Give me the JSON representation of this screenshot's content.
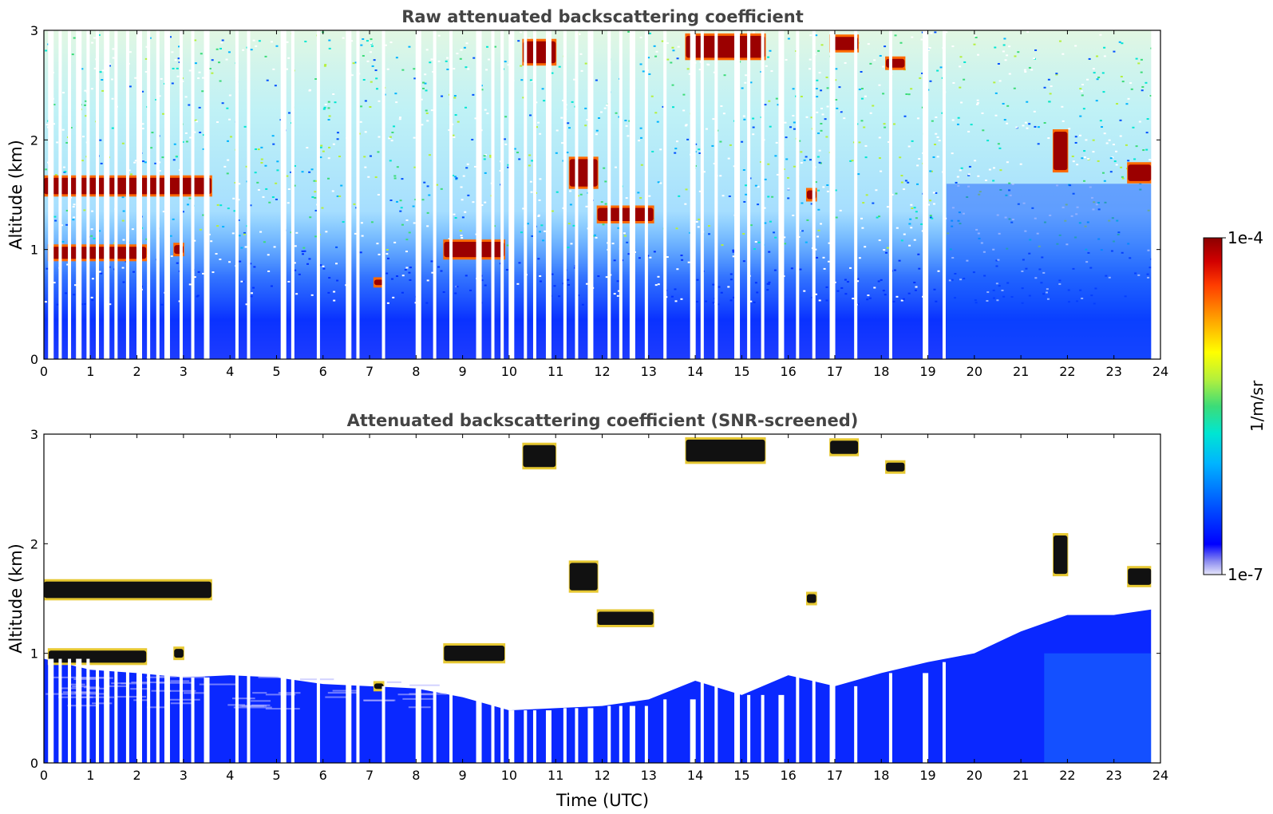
{
  "chart_data": [
    {
      "type": "heatmap",
      "title": "Raw attenuated backscattering coefficient",
      "xlabel": "",
      "ylabel": "Altitude (km)",
      "xlim": [
        0,
        24
      ],
      "ylim": [
        0,
        3
      ],
      "xticks": [
        0,
        1,
        2,
        3,
        4,
        5,
        6,
        7,
        8,
        9,
        10,
        11,
        12,
        13,
        14,
        15,
        16,
        17,
        18,
        19,
        20,
        21,
        22,
        23,
        24
      ],
      "yticks": [
        0,
        1,
        2,
        3
      ],
      "grid": false,
      "data_gaps_utc": [
        0.15,
        0.35,
        0.55,
        0.75,
        0.95,
        1.15,
        1.35,
        1.55,
        1.8,
        2.05,
        2.25,
        2.45,
        2.65,
        2.95,
        3.2,
        3.5,
        4.15,
        4.4,
        5.15,
        5.35,
        5.9,
        6.55,
        6.75,
        7.3,
        8.05,
        8.4,
        8.75,
        9.35,
        9.65,
        9.85,
        10.05,
        10.35,
        10.55,
        10.85,
        11.2,
        11.45,
        11.75,
        12.15,
        12.4,
        12.65,
        12.95,
        13.35,
        13.95,
        14.15,
        14.45,
        14.9,
        15.15,
        15.45,
        15.85,
        16.2,
        16.55,
        16.95,
        17.45,
        18.2,
        18.95,
        19.35
      ],
      "cloud_layers": [
        {
          "t0": 0.0,
          "t1": 3.6,
          "alt": 1.58,
          "thick": 0.15
        },
        {
          "t0": 0.1,
          "t1": 2.2,
          "alt": 0.97,
          "thick": 0.11
        },
        {
          "t0": 2.8,
          "t1": 3.0,
          "alt": 1.0,
          "thick": 0.08
        },
        {
          "t0": 8.6,
          "t1": 9.9,
          "alt": 1.0,
          "thick": 0.14
        },
        {
          "t0": 10.3,
          "t1": 11.0,
          "alt": 2.8,
          "thick": 0.2
        },
        {
          "t0": 11.3,
          "t1": 11.9,
          "alt": 1.7,
          "thick": 0.25
        },
        {
          "t0": 11.9,
          "t1": 13.1,
          "alt": 1.32,
          "thick": 0.12
        },
        {
          "t0": 13.8,
          "t1": 15.5,
          "alt": 2.85,
          "thick": 0.2
        },
        {
          "t0": 16.9,
          "t1": 17.5,
          "alt": 2.88,
          "thick": 0.12
        },
        {
          "t0": 18.1,
          "t1": 18.5,
          "alt": 2.7,
          "thick": 0.08
        },
        {
          "t0": 21.7,
          "t1": 22.0,
          "alt": 1.9,
          "thick": 0.35
        },
        {
          "t0": 23.3,
          "t1": 23.8,
          "alt": 1.7,
          "thick": 0.15
        },
        {
          "t0": 7.1,
          "t1": 7.3,
          "alt": 0.7,
          "thick": 0.05
        },
        {
          "t0": 16.4,
          "t1": 16.6,
          "alt": 1.5,
          "thick": 0.08
        }
      ]
    },
    {
      "type": "heatmap",
      "title": "Attenuated backscattering coefficient (SNR-screened)",
      "xlabel": "Time (UTC)",
      "ylabel": "Altitude (km)",
      "xlim": [
        0,
        24
      ],
      "ylim": [
        0,
        3
      ],
      "xticks": [
        0,
        1,
        2,
        3,
        4,
        5,
        6,
        7,
        8,
        9,
        10,
        11,
        12,
        13,
        14,
        15,
        16,
        17,
        18,
        19,
        20,
        21,
        22,
        23,
        24
      ],
      "yticks": [
        0,
        1,
        2,
        3
      ],
      "grid": false,
      "boundary_layer_top_km": [
        [
          0,
          0.95
        ],
        [
          1,
          0.85
        ],
        [
          2,
          0.82
        ],
        [
          3,
          0.78
        ],
        [
          4,
          0.8
        ],
        [
          5,
          0.78
        ],
        [
          6,
          0.72
        ],
        [
          7,
          0.7
        ],
        [
          8,
          0.68
        ],
        [
          9,
          0.6
        ],
        [
          10,
          0.48
        ],
        [
          11,
          0.5
        ],
        [
          12,
          0.52
        ],
        [
          13,
          0.58
        ],
        [
          14,
          0.75
        ],
        [
          15,
          0.62
        ],
        [
          16,
          0.8
        ],
        [
          17,
          0.7
        ],
        [
          18,
          0.82
        ],
        [
          19,
          0.92
        ],
        [
          20,
          1.0
        ],
        [
          21,
          1.2
        ],
        [
          22,
          1.35
        ],
        [
          23,
          1.35
        ],
        [
          23.8,
          1.4
        ]
      ]
    }
  ],
  "colorbar": {
    "label": "1/m/sr",
    "max_label": "1e-4",
    "min_label": "1e-7",
    "colors": [
      "#e6e6fa",
      "#8a8af0",
      "#0000ff",
      "#0050ff",
      "#00b4ff",
      "#00e6d2",
      "#3cdc78",
      "#b4f03c",
      "#ffff00",
      "#ffa000",
      "#ff3c00",
      "#d20000",
      "#8c0000"
    ]
  }
}
